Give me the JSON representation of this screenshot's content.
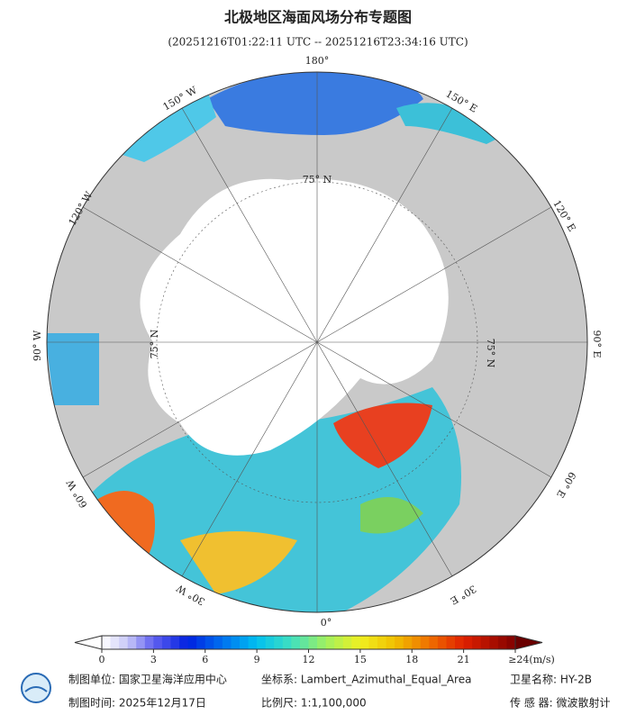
{
  "title": "北极地区海面风场分布专题图",
  "subtitle": "(20251216T01:22:11 UTC -- 20251216T23:34:16 UTC)",
  "map": {
    "longitude_labels": [
      "180°",
      "150° W",
      "150° E",
      "120° W",
      "120° E",
      "90° W",
      "90° E",
      "60° W",
      "60° E",
      "30° W",
      "30° E",
      "0°"
    ],
    "latitude_labels": [
      "75° N",
      "75° N",
      "75° N"
    ]
  },
  "colorbar": {
    "lim": [
      0,
      24
    ],
    "ticks": [
      0,
      3,
      6,
      9,
      12,
      15,
      18,
      21,
      {
        "value": 24,
        "label": "≥24(m/s)"
      }
    ]
  },
  "footer": {
    "unit": "制图单位: 国家卫星海洋应用中心",
    "crs": "坐标系: Lambert_Azimuthal_Equal_Area",
    "satellite": "卫星名称: HY-2B",
    "date": "制图时间: 2025年12月17日",
    "scale": "比例尺: 1:1,100,000",
    "sensor": "传 感 器: 微波散射计"
  }
}
